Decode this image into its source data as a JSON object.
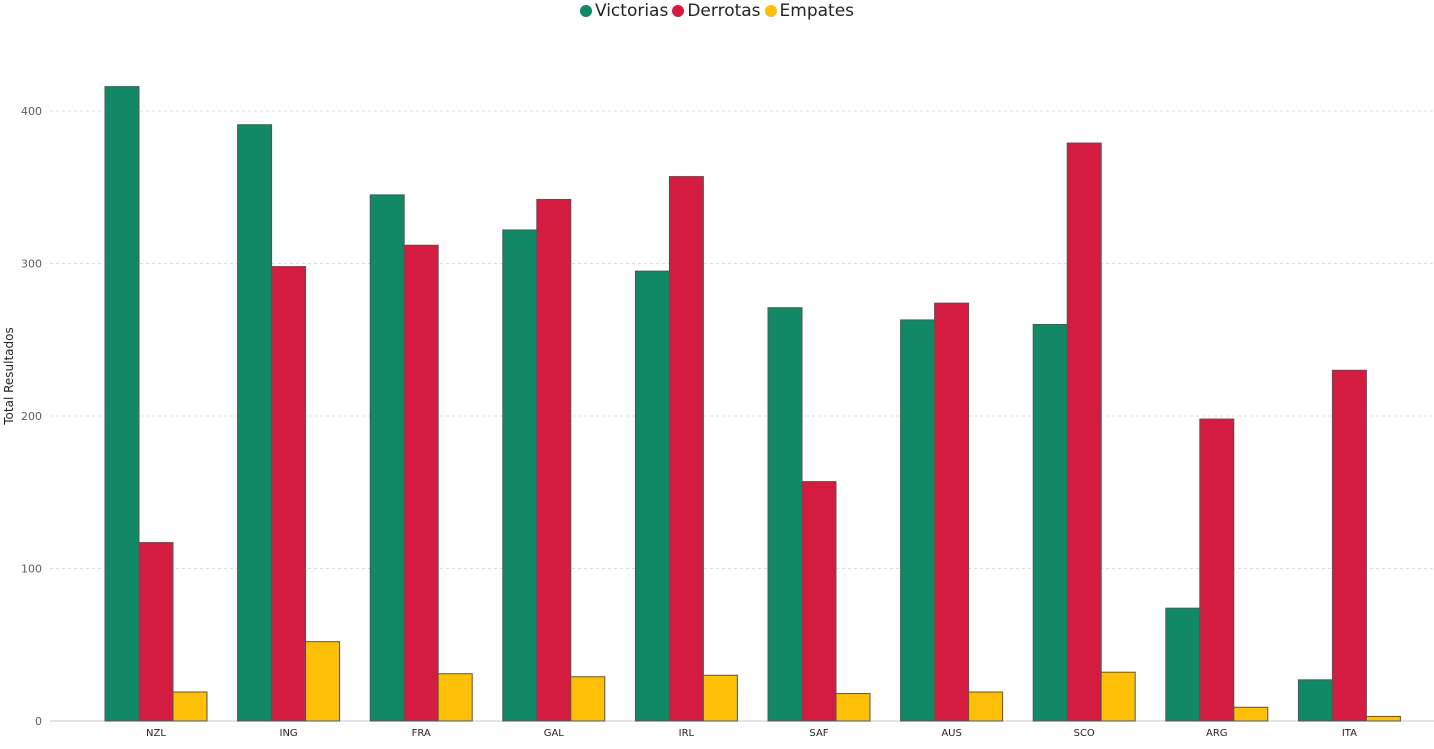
{
  "chart_data": {
    "type": "bar",
    "title": "",
    "xlabel": "",
    "ylabel": "Total Resultados",
    "ylim": [
      0,
      400
    ],
    "yticks": [
      0,
      100,
      200,
      300,
      400
    ],
    "grid": true,
    "legend_position": "top-center",
    "categories": [
      "NZL",
      "ING",
      "FRA",
      "GAL",
      "IRL",
      "SAF",
      "AUS",
      "SCO",
      "ARG",
      "ITA"
    ],
    "series": [
      {
        "name": "Victorias",
        "color": "#118866",
        "values": [
          416,
          391,
          345,
          322,
          295,
          271,
          263,
          260,
          74,
          27
        ]
      },
      {
        "name": "Derrotas",
        "color": "#D31C3F",
        "values": [
          117,
          298,
          312,
          342,
          357,
          157,
          274,
          379,
          198,
          230
        ]
      },
      {
        "name": "Empates",
        "color": "#FDC006",
        "values": [
          19,
          52,
          31,
          29,
          30,
          18,
          19,
          32,
          9,
          3
        ]
      }
    ]
  }
}
